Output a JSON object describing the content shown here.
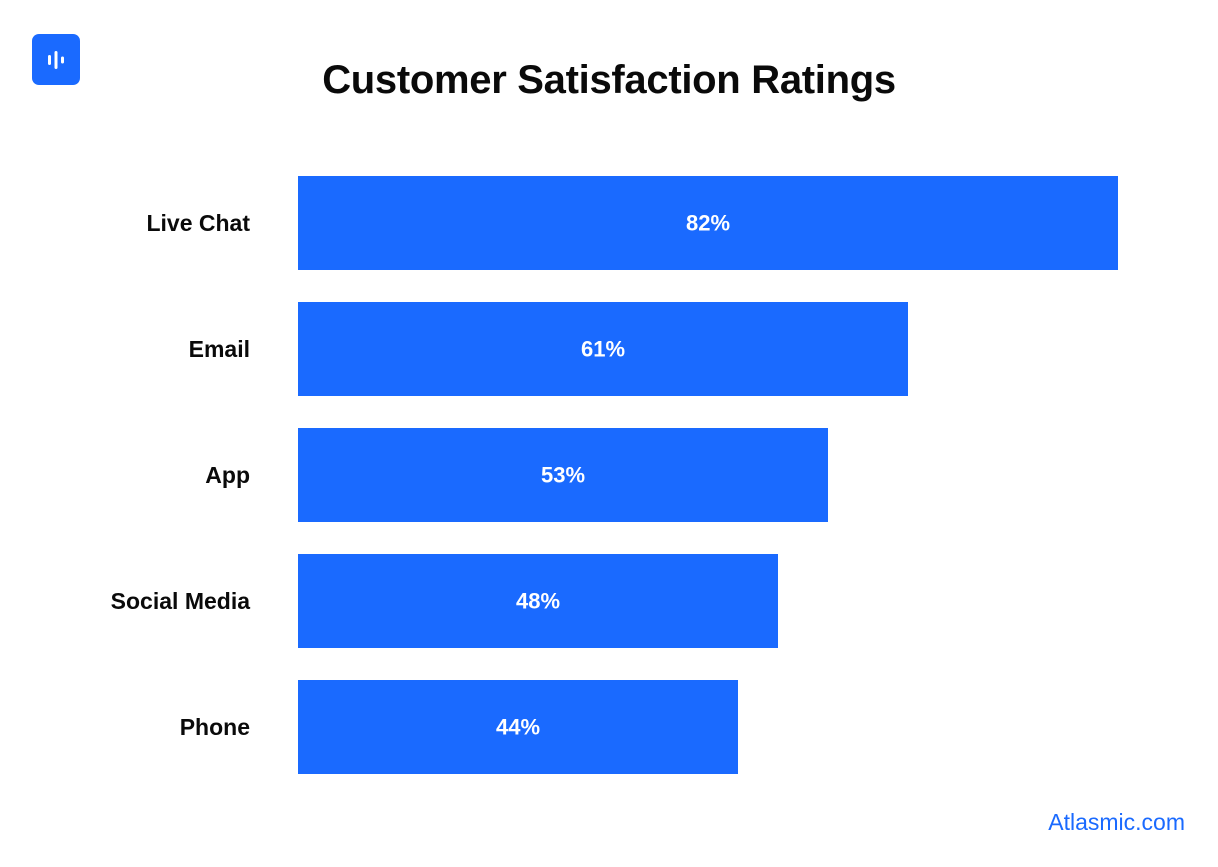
{
  "brand": {
    "logo_icon": "audio-waveform-icon",
    "accent_color": "#1a6aff",
    "source_text": "Atlasmic.com"
  },
  "chart_data": {
    "type": "bar",
    "orientation": "horizontal",
    "title": "Customer Satisfaction Ratings",
    "categories": [
      "Live Chat",
      "Email",
      "App",
      "Social Media",
      "Phone"
    ],
    "values": [
      82,
      61,
      53,
      48,
      44
    ],
    "value_labels": [
      "82%",
      "61%",
      "53%",
      "48%",
      "44%"
    ],
    "unit": "%",
    "xlabel": "",
    "ylabel": "",
    "xlim": [
      0,
      82
    ],
    "grid": false,
    "legend": "none",
    "bar_color": "#1a6aff"
  }
}
